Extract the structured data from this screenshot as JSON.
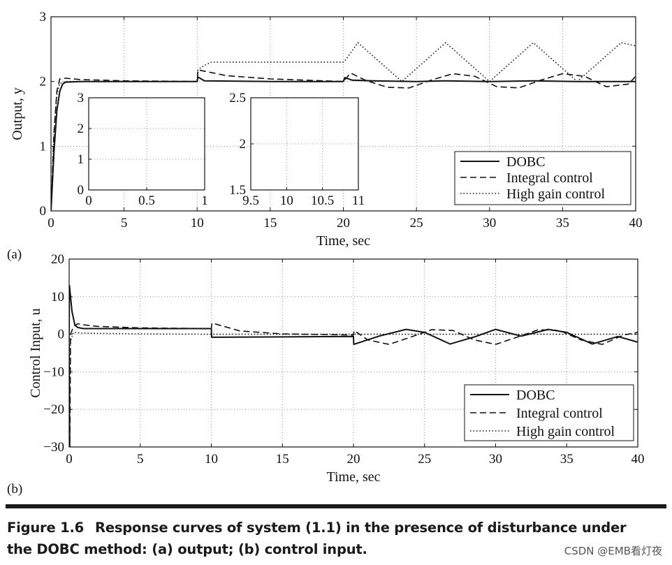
{
  "panel_labels": [
    "(a)",
    "(b)"
  ],
  "caption": {
    "figure_number": "Figure 1.6",
    "line1": "Response curves of system (1.1) in the presence of disturbance under",
    "line2": "the DOBC method: (a) output; (b) control input."
  },
  "watermark": "CSDN @EMB看灯夜",
  "chart_data": [
    {
      "type": "line",
      "panel": "(a)",
      "xlabel": "Time, sec",
      "ylabel": "Output, y",
      "xlim": [
        0,
        40
      ],
      "ylim": [
        0,
        3
      ],
      "xticks": [
        0,
        5,
        10,
        15,
        20,
        25,
        30,
        35,
        40
      ],
      "xtick_labels": [
        "0",
        "5",
        "10",
        "15",
        "20",
        "25",
        "30",
        "35",
        "40"
      ],
      "yticks": [
        0,
        1,
        2,
        3
      ],
      "ytick_labels": [
        "0",
        "1",
        "2",
        "3"
      ],
      "grid": true,
      "legend_position": "bottom-right",
      "series": [
        {
          "name": "DOBC",
          "style": "solid",
          "x": [
            0,
            0.2,
            0.4,
            0.6,
            0.8,
            1.0,
            2,
            5,
            10,
            10.05,
            10.5,
            15,
            20,
            20.1,
            20.6,
            22,
            25,
            27,
            30,
            33,
            36,
            40
          ],
          "y": [
            0,
            0.9,
            1.55,
            1.85,
            1.96,
            1.99,
            2.0,
            2.0,
            2.0,
            2.07,
            2.01,
            2.0,
            2.0,
            2.06,
            2.02,
            2.01,
            2.0,
            2.01,
            2.0,
            2.01,
            2.0,
            2.0
          ]
        },
        {
          "name": "Integral control",
          "style": "dashed",
          "x": [
            0,
            0.2,
            0.4,
            0.6,
            1.0,
            2,
            5,
            10,
            10.05,
            12,
            15,
            20,
            20.5,
            21.5,
            23,
            24.5,
            26,
            27.5,
            29,
            30.5,
            32,
            33.5,
            35,
            36.5,
            38,
            39.5,
            40
          ],
          "y": [
            0,
            1.2,
            1.85,
            2.04,
            2.05,
            2.03,
            2.01,
            2.0,
            2.18,
            2.09,
            2.04,
            2.0,
            2.13,
            2.02,
            1.91,
            1.9,
            2.02,
            2.12,
            2.08,
            1.92,
            1.9,
            2.02,
            2.12,
            2.08,
            1.92,
            1.96,
            2.08
          ]
        },
        {
          "name": "High gain control",
          "style": "dotted",
          "x": [
            0,
            0.2,
            0.4,
            0.6,
            1.0,
            2,
            5,
            10,
            10.05,
            10.5,
            11,
            15,
            20,
            20.05,
            21,
            24,
            27,
            30,
            33,
            36,
            39,
            40
          ],
          "y": [
            0,
            1.2,
            1.8,
            1.97,
            2.0,
            2.0,
            2.0,
            2.0,
            2.18,
            2.25,
            2.3,
            2.3,
            2.3,
            2.3,
            2.6,
            2.0,
            2.6,
            2.0,
            2.6,
            2.0,
            2.6,
            2.55
          ]
        }
      ],
      "insets": [
        {
          "xlim": [
            0,
            1
          ],
          "ylim": [
            0,
            3
          ],
          "xticks": [
            0,
            0.5,
            1
          ],
          "xtick_labels": [
            "0",
            "0.5",
            "1"
          ],
          "yticks": [
            0,
            1,
            2,
            3
          ],
          "ytick_labels": [
            "0",
            "1",
            "2",
            "3"
          ]
        },
        {
          "xlim": [
            9.5,
            11
          ],
          "ylim": [
            1.5,
            2.5
          ],
          "xticks": [
            9.5,
            10,
            10.5,
            11
          ],
          "xtick_labels": [
            "9.5",
            "10",
            "10.5",
            "11"
          ],
          "yticks": [
            1.5,
            2,
            2.5
          ],
          "ytick_labels": [
            "1.5",
            "2",
            "2.5"
          ]
        }
      ]
    },
    {
      "type": "line",
      "panel": "(b)",
      "xlabel": "Time, sec",
      "ylabel": "Control Input, u",
      "xlim": [
        0,
        40
      ],
      "ylim": [
        -30,
        20
      ],
      "xticks": [
        0,
        5,
        10,
        15,
        20,
        25,
        30,
        35,
        40
      ],
      "xtick_labels": [
        "0",
        "5",
        "10",
        "15",
        "20",
        "25",
        "30",
        "35",
        "40"
      ],
      "yticks": [
        -30,
        -20,
        -10,
        0,
        10,
        20
      ],
      "ytick_labels": [
        "−30",
        "−20",
        "−10",
        "0",
        "10",
        "20"
      ],
      "grid": true,
      "legend_position": "bottom-right",
      "series": [
        {
          "name": "DOBC",
          "style": "solid",
          "x": [
            0,
            0.02,
            0.2,
            0.4,
            0.6,
            1,
            2,
            5,
            10,
            10.02,
            15,
            20,
            20.02,
            21.8,
            23.7,
            25,
            26.8,
            28.6,
            30,
            31.8,
            33.7,
            35,
            36.8,
            38.6,
            40
          ],
          "y": [
            0,
            13,
            6,
            2.5,
            1.8,
            1.5,
            1.5,
            1.5,
            1.5,
            -0.8,
            -0.7,
            -0.6,
            -2.7,
            -0.5,
            1.3,
            0.5,
            -2.6,
            -0.6,
            1.3,
            -0.5,
            1.3,
            0.5,
            -2.6,
            -0.6,
            -2.1
          ]
        },
        {
          "name": "Integral control",
          "style": "dashed",
          "x": [
            0,
            0.05,
            0.1,
            0.3,
            0.6,
            1,
            2,
            5,
            10,
            10.05,
            12,
            15,
            20,
            20.05,
            21,
            22.5,
            24,
            25.5,
            27,
            28.5,
            30,
            31.5,
            33,
            34.5,
            36,
            37.5,
            39,
            40
          ],
          "y": [
            0,
            -30,
            0,
            2.0,
            2.8,
            2.5,
            2.1,
            1.7,
            1.5,
            3.0,
            0.9,
            0.1,
            -0.2,
            1.0,
            -1.5,
            -2.7,
            -0.8,
            1.2,
            1.0,
            -1.5,
            -2.7,
            -0.8,
            1.2,
            1.0,
            -1.5,
            -2.7,
            -0.2,
            0.5
          ]
        },
        {
          "name": "High gain control",
          "style": "dotted",
          "x": [
            0,
            0.02,
            0.08,
            0.3,
            1,
            5,
            10,
            15,
            20,
            40
          ],
          "y": [
            0,
            -30,
            -2,
            0.5,
            0.3,
            0.1,
            0.0,
            0.0,
            0.0,
            0.0
          ]
        }
      ]
    }
  ]
}
